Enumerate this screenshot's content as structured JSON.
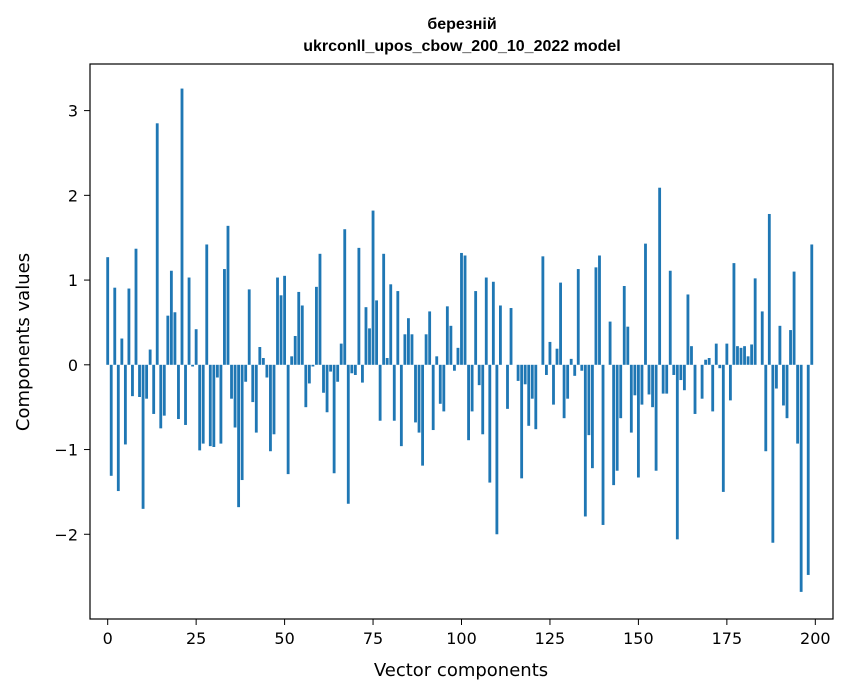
{
  "chart_data": {
    "type": "bar",
    "title": "березній",
    "subtitle": "ukrconll_upos_cbow_200_10_2022 model",
    "xlabel": "Vector components",
    "ylabel": "Components values",
    "color": "#1f77b4",
    "grid": false,
    "xlim": [
      -5,
      205
    ],
    "ylim": [
      -3.0,
      3.55
    ],
    "xticks": [
      0,
      25,
      50,
      75,
      100,
      125,
      150,
      175,
      200
    ],
    "xtick_labels": [
      "0",
      "25",
      "50",
      "75",
      "100",
      "125",
      "150",
      "175",
      "200"
    ],
    "yticks": [
      -2,
      -1,
      0,
      1,
      2,
      3
    ],
    "ytick_labels": [
      "−2",
      "−1",
      "0",
      "1",
      "2",
      "3"
    ],
    "values": [
      1.27,
      -1.31,
      0.91,
      -1.49,
      0.31,
      -0.94,
      0.9,
      -0.37,
      1.37,
      -0.38,
      -1.7,
      -0.4,
      0.18,
      -0.58,
      2.85,
      -0.75,
      -0.6,
      0.58,
      1.11,
      0.62,
      -0.64,
      3.26,
      -0.71,
      1.03,
      -0.02,
      0.42,
      -1.01,
      -0.93,
      1.42,
      -0.96,
      -0.97,
      -0.15,
      -0.93,
      1.13,
      1.64,
      -0.4,
      -0.74,
      -1.68,
      -1.36,
      -0.2,
      0.89,
      -0.44,
      -0.8,
      0.21,
      0.08,
      -0.15,
      -1.02,
      -0.82,
      1.03,
      0.82,
      1.05,
      -1.29,
      0.1,
      0.34,
      0.86,
      0.7,
      -0.5,
      -0.22,
      -0.02,
      0.92,
      1.31,
      -0.33,
      -0.56,
      -0.08,
      -1.28,
      -0.2,
      0.25,
      1.6,
      -1.64,
      -0.1,
      -0.12,
      1.38,
      -0.21,
      0.68,
      0.43,
      1.82,
      0.76,
      -0.66,
      1.31,
      0.08,
      0.95,
      -0.66,
      0.87,
      -0.96,
      0.36,
      0.55,
      0.36,
      -0.68,
      -0.8,
      -1.19,
      0.36,
      0.63,
      -0.77,
      0.1,
      -0.46,
      -0.55,
      0.69,
      0.46,
      -0.07,
      0.2,
      1.32,
      1.29,
      -0.89,
      -0.55,
      0.87,
      -0.24,
      -0.82,
      1.03,
      -1.39,
      0.98,
      -2.0,
      0.7,
      0.0,
      -0.52,
      0.67,
      0.0,
      -0.19,
      -1.34,
      -0.23,
      -0.72,
      -0.4,
      -0.76,
      0.0,
      1.28,
      -0.12,
      0.27,
      -0.47,
      0.19,
      0.97,
      -0.63,
      -0.4,
      0.07,
      -0.13,
      1.13,
      -0.07,
      -1.79,
      -0.83,
      -1.22,
      1.15,
      1.29,
      -1.89,
      0.0,
      0.51,
      -1.42,
      -1.25,
      -0.63,
      0.93,
      0.45,
      -0.8,
      -0.36,
      -1.33,
      -0.47,
      1.43,
      -0.35,
      -0.5,
      -1.25,
      2.09,
      -0.34,
      -0.34,
      1.11,
      -0.12,
      -2.06,
      -0.18,
      -0.3,
      0.83,
      0.22,
      -0.58,
      0.0,
      -0.4,
      0.06,
      0.08,
      -0.55,
      0.25,
      -0.04,
      -1.5,
      0.25,
      -0.42,
      1.2,
      0.22,
      0.2,
      0.22,
      0.1,
      0.24,
      1.02,
      0.0,
      0.63,
      -1.02,
      1.78,
      -2.1,
      -0.28,
      0.46,
      -0.48,
      -0.63,
      0.41,
      1.1,
      -0.93,
      -2.68,
      0.0,
      -2.48,
      1.42
    ]
  }
}
